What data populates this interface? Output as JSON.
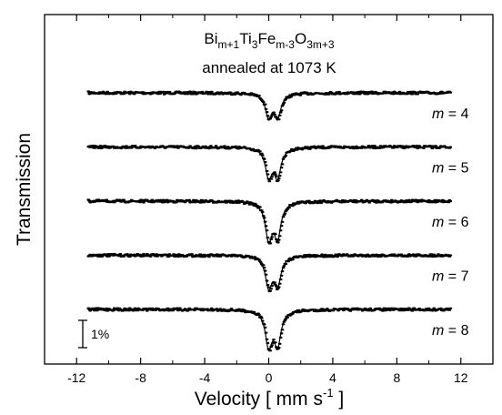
{
  "chart_data": {
    "type": "scatter",
    "title": {
      "formula_parts": [
        {
          "text": "Bi",
          "sub": false
        },
        {
          "text": "m+1",
          "sub": true
        },
        {
          "text": "Ti",
          "sub": false
        },
        {
          "text": "3",
          "sub": true
        },
        {
          "text": "Fe",
          "sub": false
        },
        {
          "text": "m-3",
          "sub": true
        },
        {
          "text": "O",
          "sub": false
        },
        {
          "text": "3m+3",
          "sub": true
        }
      ],
      "subtitle": "annealed at 1073 K"
    },
    "xlabel": {
      "main": "Velocity [ mm s",
      "sup": "-1",
      "end": " ]"
    },
    "ylabel": "Transmission",
    "xlim": [
      -14,
      14
    ],
    "xticks": [
      -12,
      -8,
      -4,
      0,
      4,
      8,
      12
    ],
    "scale_bar_label": "1%",
    "scale_bar_percent": 1,
    "series": [
      {
        "name": "m = 4",
        "m": "4",
        "offset_percent": 0,
        "peaks": [
          {
            "center": 0.0,
            "depth": 0.85
          },
          {
            "center": 0.55,
            "depth": 0.85
          }
        ],
        "width": 0.5
      },
      {
        "name": "m = 5",
        "m": "5",
        "offset_percent": -2.6,
        "peaks": [
          {
            "center": 0.0,
            "depth": 1.05
          },
          {
            "center": 0.55,
            "depth": 1.05
          }
        ],
        "width": 0.5
      },
      {
        "name": "m = 6",
        "m": "6",
        "offset_percent": -5.2,
        "peaks": [
          {
            "center": 0.0,
            "depth": 1.35
          },
          {
            "center": 0.55,
            "depth": 1.25
          }
        ],
        "width": 0.5
      },
      {
        "name": "m = 7",
        "m": "7",
        "offset_percent": -7.8,
        "peaks": [
          {
            "center": 0.0,
            "depth": 1.1
          },
          {
            "center": 0.55,
            "depth": 1.05
          }
        ],
        "width": 0.5
      },
      {
        "name": "m = 8",
        "m": "8",
        "offset_percent": -10.4,
        "peaks": [
          {
            "center": 0.0,
            "depth": 1.3
          },
          {
            "center": 0.55,
            "depth": 1.25
          }
        ],
        "width": 0.5
      }
    ],
    "x_range_data": [
      -11.3,
      11.3
    ],
    "grid": false,
    "legend": "none"
  }
}
